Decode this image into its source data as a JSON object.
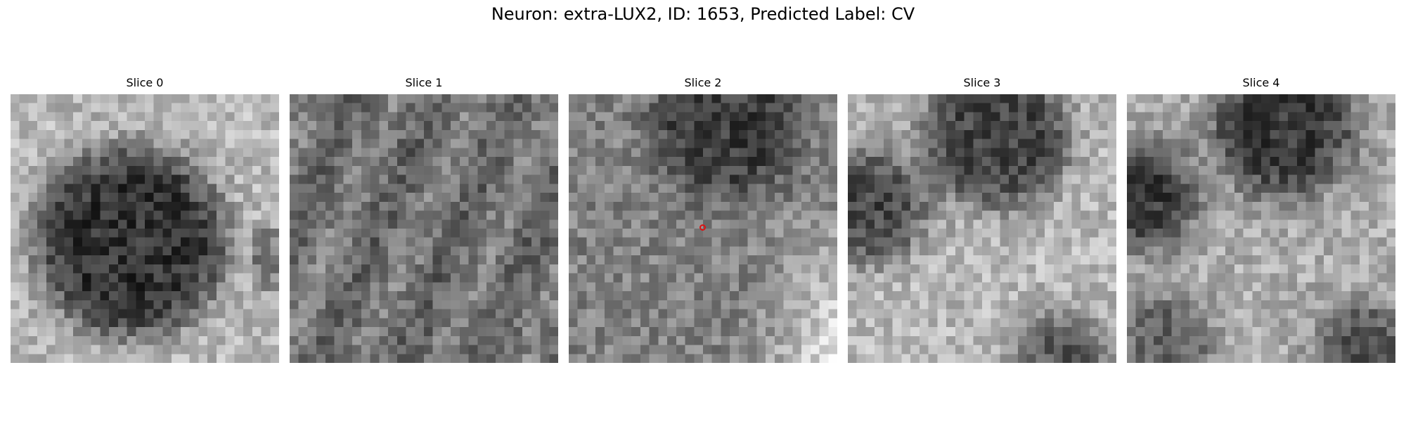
{
  "figure": {
    "title": "Neuron: extra-LUX2, ID: 1653, Predicted Label: CV"
  },
  "panels": [
    {
      "title": "Slice 0",
      "pattern": "dark-blob-center"
    },
    {
      "title": "Slice 1",
      "pattern": "uniform-noise"
    },
    {
      "title": "Slice 2",
      "pattern": "dark-top-bright-right",
      "marker": {
        "color": "#e01010",
        "shape": "circle-outline"
      }
    },
    {
      "title": "Slice 3",
      "pattern": "dark-top-and-left-bright-center"
    },
    {
      "title": "Slice 4",
      "pattern": "dark-lobes-bright-cross"
    }
  ],
  "colormap": "grayscale"
}
